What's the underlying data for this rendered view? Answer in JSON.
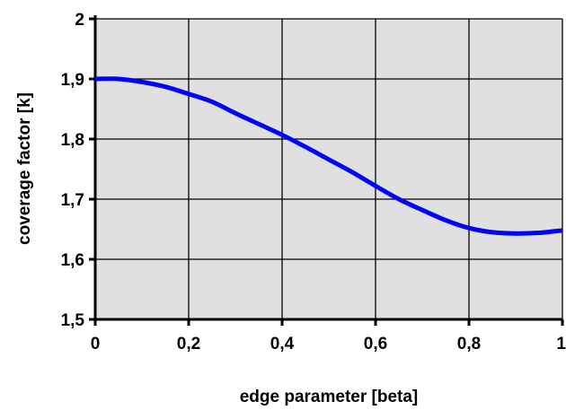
{
  "chart_data": {
    "type": "line",
    "title": "",
    "xlabel": "edge parameter [beta]",
    "ylabel": "coverage factor [k]",
    "xlim": [
      0,
      1
    ],
    "ylim": [
      1.5,
      2
    ],
    "x_ticks": [
      0,
      0.2,
      0.4,
      0.6,
      0.8,
      1
    ],
    "x_tick_labels": [
      "0",
      "0,2",
      "0,4",
      "0,6",
      "0,8",
      "1"
    ],
    "y_ticks": [
      1.5,
      1.6,
      1.7,
      1.8,
      1.9,
      2
    ],
    "y_tick_labels": [
      "1,5",
      "1,6",
      "1,7",
      "1,8",
      "1,9",
      "2"
    ],
    "grid": true,
    "legend": "none",
    "colors": {
      "plot_background": "#e0e0e0",
      "line": "#0000ff",
      "grid": "#000000"
    },
    "series": [
      {
        "x": [
          0,
          0.05,
          0.1,
          0.15,
          0.2,
          0.25,
          0.3,
          0.35,
          0.4,
          0.45,
          0.5,
          0.55,
          0.6,
          0.65,
          0.7,
          0.75,
          0.8,
          0.85,
          0.9,
          0.95,
          1
        ],
        "values": [
          1.9,
          1.9,
          1.895,
          1.887,
          1.875,
          1.862,
          1.843,
          1.825,
          1.807,
          1.787,
          1.766,
          1.745,
          1.722,
          1.7,
          1.682,
          1.665,
          1.652,
          1.645,
          1.643,
          1.644,
          1.648
        ]
      }
    ]
  }
}
